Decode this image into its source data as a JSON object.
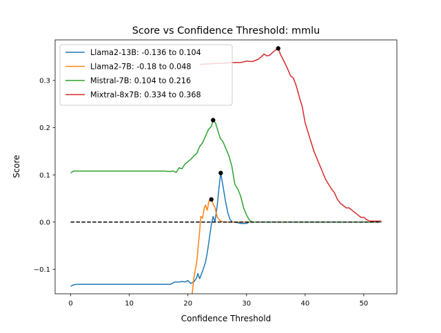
{
  "chart_data": {
    "type": "line",
    "title": "Score vs Confidence Threshold: mmlu",
    "xlabel": "Confidence Threshold",
    "ylabel": "Score",
    "xlim": [
      -2.65,
      55.65
    ],
    "ylim": [
      -0.152,
      0.386
    ],
    "xticks": [
      0,
      10,
      20,
      30,
      40,
      50
    ],
    "xtick_labels": [
      "0",
      "10",
      "20",
      "30",
      "40",
      "50"
    ],
    "yticks": [
      -0.1,
      0.0,
      0.1,
      0.2,
      0.3
    ],
    "ytick_labels": [
      "−0.1",
      "0.0",
      "0.1",
      "0.2",
      "0.3"
    ],
    "legend_position": "top-left",
    "grid": false,
    "series": [
      {
        "name": "Llama2-13B: -0.136 to 0.104",
        "color": "#1f77b4",
        "x": [
          0,
          0.5,
          1,
          5,
          10,
          14,
          16,
          17,
          17.8,
          18.5,
          19,
          19.5,
          20,
          20.5,
          21,
          21.5,
          21.7,
          22,
          22.5,
          23,
          23.3,
          23.6,
          24,
          24.3,
          24.6,
          25,
          25.3,
          25.6,
          26,
          26.4,
          26.8,
          27.2,
          27.6,
          28,
          29,
          29.5,
          30,
          30.5,
          31,
          35,
          40,
          45,
          50,
          53
        ],
        "y": [
          -0.136,
          -0.133,
          -0.132,
          -0.132,
          -0.132,
          -0.132,
          -0.132,
          -0.132,
          -0.127,
          -0.127,
          -0.126,
          -0.127,
          -0.124,
          -0.13,
          -0.127,
          -0.118,
          -0.109,
          -0.12,
          -0.104,
          -0.085,
          -0.065,
          -0.04,
          -0.005,
          0.012,
          0.0,
          0.035,
          0.072,
          0.104,
          0.075,
          0.045,
          0.02,
          0.005,
          0.0,
          0.0,
          -0.003,
          -0.003,
          -0.003,
          0.0,
          0.0,
          0.0,
          0.0,
          0.0,
          0.0,
          0.0
        ]
      },
      {
        "name": "Llama2-7B: -0.18 to 0.048",
        "color": "#ff7f0e",
        "x": [
          20.5,
          21,
          21.5,
          22,
          22.2,
          22.5,
          22.8,
          23,
          23.3,
          23.6,
          24,
          24.3,
          24.6,
          25,
          25.5,
          26,
          27,
          28,
          30,
          35,
          40,
          45,
          50,
          53
        ],
        "y": [
          -0.18,
          -0.12,
          -0.085,
          -0.02,
          0.012,
          0.008,
          0.03,
          0.036,
          0.025,
          0.045,
          0.048,
          0.038,
          0.032,
          0.01,
          0.003,
          0.0,
          0.0,
          0.0,
          0.0,
          0.0,
          0.0,
          0.0,
          0.0,
          0.0
        ]
      },
      {
        "name": "Mistral-7B: 0.104 to 0.216",
        "color": "#2ca02c",
        "x": [
          0,
          0.5,
          1,
          5,
          10,
          15,
          16,
          17,
          17.5,
          18,
          18.5,
          19,
          19.5,
          20,
          20.5,
          21,
          21.5,
          22,
          22.5,
          23,
          23.5,
          24,
          24.3,
          24.7,
          25,
          25.5,
          26,
          26.5,
          27,
          27.5,
          28,
          28.5,
          29,
          29.5,
          30,
          30.5,
          31,
          35,
          40,
          45,
          50,
          53
        ],
        "y": [
          0.104,
          0.108,
          0.108,
          0.108,
          0.108,
          0.108,
          0.108,
          0.107,
          0.108,
          0.105,
          0.115,
          0.113,
          0.123,
          0.128,
          0.133,
          0.14,
          0.145,
          0.16,
          0.168,
          0.182,
          0.196,
          0.203,
          0.216,
          0.21,
          0.198,
          0.178,
          0.17,
          0.155,
          0.14,
          0.118,
          0.08,
          0.07,
          0.055,
          0.03,
          0.015,
          0.004,
          0.0,
          0.0,
          0.0,
          0.0,
          0.0,
          0.0
        ]
      },
      {
        "name": "Mixtral-8x7B: 0.334 to 0.368",
        "color": "#d62728",
        "x": [
          22,
          25,
          28,
          29,
          30,
          31,
          32,
          32.5,
          33,
          33.5,
          34,
          34.5,
          35,
          35.4,
          35.8,
          36.3,
          37,
          37.5,
          38,
          38.5,
          39,
          39.5,
          40,
          40.5,
          41,
          41.5,
          42,
          42.5,
          43,
          43.5,
          44,
          44.5,
          45,
          45.5,
          46,
          46.5,
          47,
          47.5,
          48,
          48.5,
          49,
          49.5,
          50,
          50.5,
          51,
          52,
          53
        ],
        "y": [
          0.334,
          0.336,
          0.338,
          0.338,
          0.341,
          0.34,
          0.345,
          0.35,
          0.356,
          0.352,
          0.354,
          0.36,
          0.365,
          0.368,
          0.355,
          0.343,
          0.325,
          0.31,
          0.305,
          0.288,
          0.265,
          0.245,
          0.21,
          0.19,
          0.17,
          0.15,
          0.135,
          0.12,
          0.105,
          0.09,
          0.08,
          0.07,
          0.062,
          0.048,
          0.04,
          0.035,
          0.03,
          0.03,
          0.025,
          0.02,
          0.015,
          0.01,
          0.01,
          0.005,
          0.002,
          0.002,
          0.002
        ]
      }
    ],
    "reference_line": {
      "y": 0,
      "x_range": [
        0,
        53
      ],
      "color": "#000000",
      "style": "dashed"
    },
    "peak_markers": [
      {
        "series": "Llama2-13B: -0.136 to 0.104",
        "x": 25.6,
        "y": 0.104
      },
      {
        "series": "Llama2-7B: -0.18 to 0.048",
        "x": 24.0,
        "y": 0.048
      },
      {
        "series": "Mistral-7B: 0.104 to 0.216",
        "x": 24.3,
        "y": 0.216
      },
      {
        "series": "Mixtral-8x7B: 0.334 to 0.368",
        "x": 35.4,
        "y": 0.368
      }
    ]
  }
}
